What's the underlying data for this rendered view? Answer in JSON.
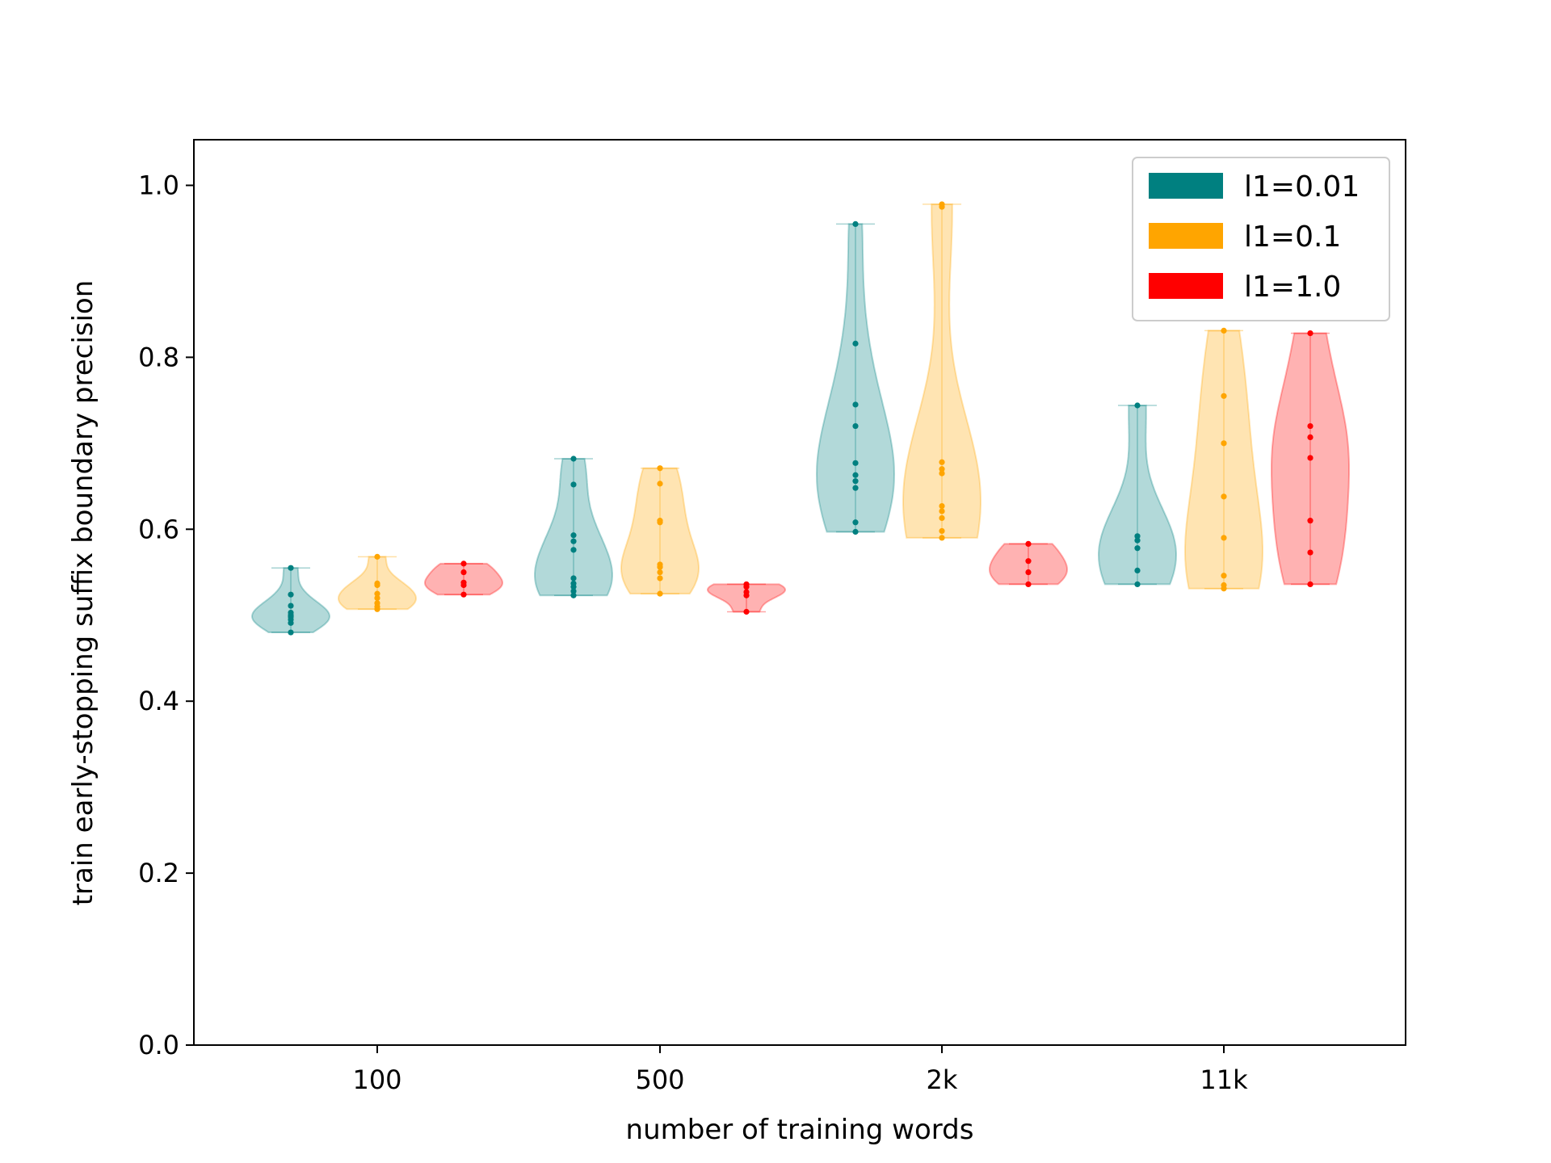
{
  "chart_data": {
    "type": "violin",
    "xlabel": "number of training words",
    "ylabel": "train early-stopping suffix boundary precision",
    "categories": [
      "100",
      "500",
      "2k",
      "11k"
    ],
    "ylim": [
      0,
      1.05
    ],
    "yticks": [
      "0.0",
      "0.2",
      "0.4",
      "0.6",
      "0.8",
      "1.0"
    ],
    "grid": false,
    "legend_position": "top-right",
    "series": [
      {
        "name": "l1=0.01",
        "color": "#008080",
        "groups": [
          [
            0.48,
            0.491,
            0.495,
            0.498,
            0.5,
            0.503,
            0.511,
            0.524,
            0.555
          ],
          [
            0.523,
            0.528,
            0.533,
            0.537,
            0.543,
            0.576,
            0.586,
            0.593,
            0.652,
            0.682
          ],
          [
            0.597,
            0.608,
            0.648,
            0.656,
            0.663,
            0.677,
            0.72,
            0.745,
            0.816,
            0.955
          ],
          [
            0.536,
            0.552,
            0.578,
            0.587,
            0.592,
            0.744
          ]
        ]
      },
      {
        "name": "l1=0.1",
        "color": "#ffa500",
        "groups": [
          [
            0.507,
            0.51,
            0.514,
            0.52,
            0.525,
            0.535,
            0.537,
            0.568
          ],
          [
            0.525,
            0.543,
            0.55,
            0.556,
            0.559,
            0.608,
            0.61,
            0.653,
            0.671
          ],
          [
            0.59,
            0.598,
            0.613,
            0.621,
            0.627,
            0.665,
            0.67,
            0.678,
            0.975,
            0.978
          ],
          [
            0.531,
            0.535,
            0.546,
            0.59,
            0.638,
            0.7,
            0.755,
            0.831
          ]
        ]
      },
      {
        "name": "l1=1.0",
        "color": "#ff0000",
        "groups": [
          [
            0.524,
            0.535,
            0.538,
            0.55,
            0.56
          ],
          [
            0.504,
            0.523,
            0.527,
            0.533,
            0.536
          ],
          [
            0.536,
            0.55,
            0.563,
            0.583
          ],
          [
            0.536,
            0.573,
            0.61,
            0.683,
            0.707,
            0.72,
            0.828
          ]
        ]
      }
    ]
  }
}
